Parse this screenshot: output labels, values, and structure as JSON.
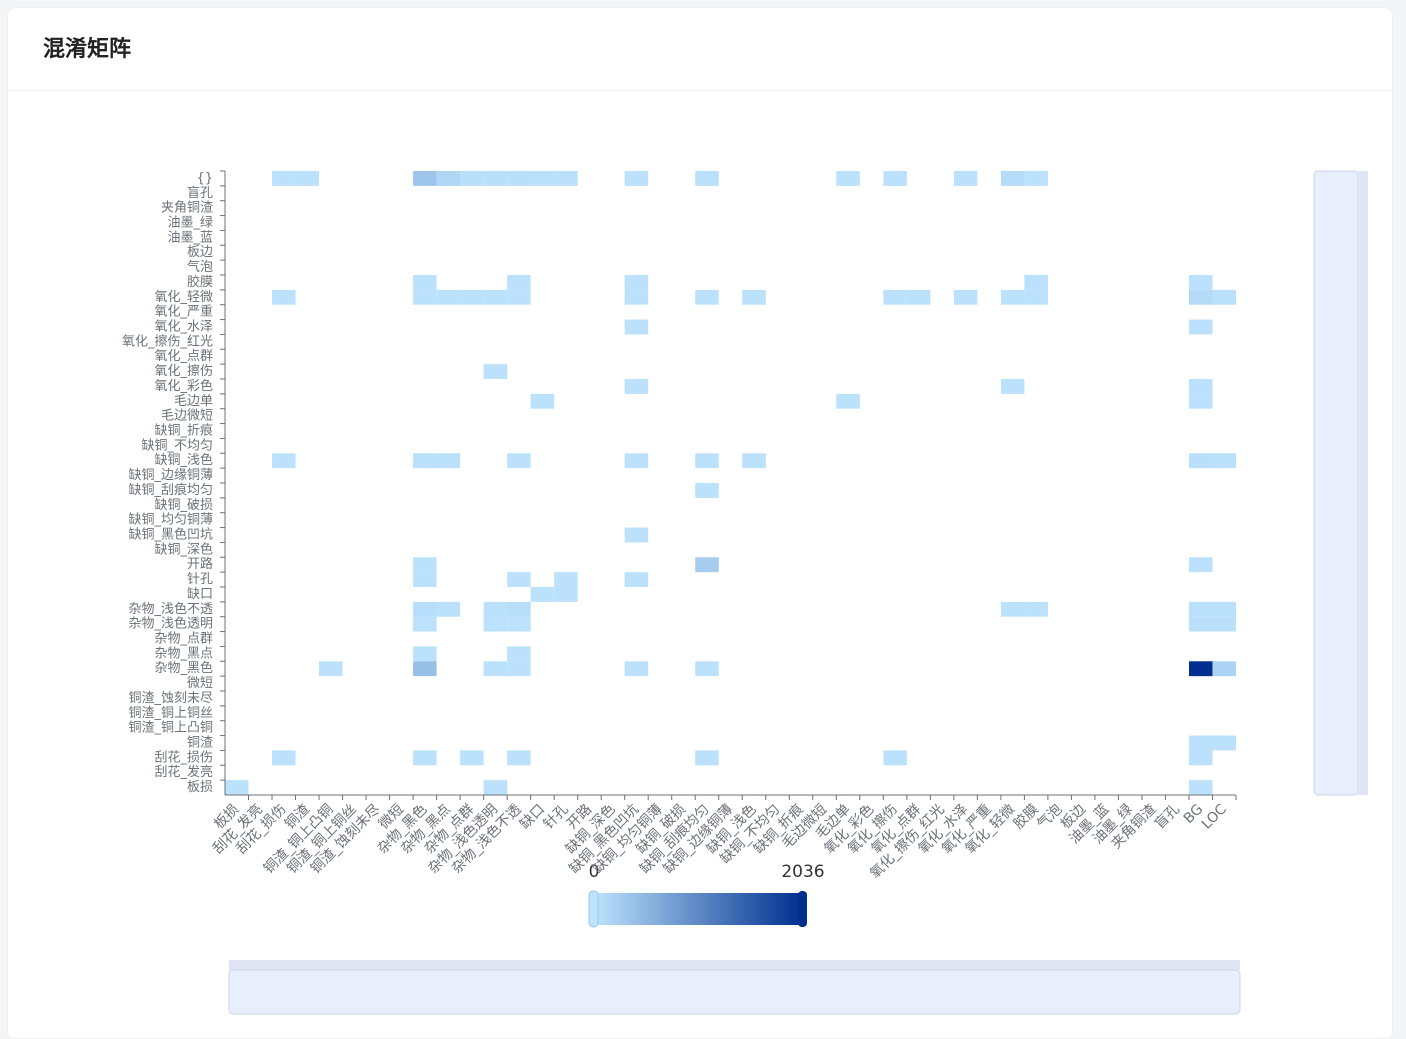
{
  "header": {
    "title": "混淆矩阵"
  },
  "chart_data": {
    "type": "heatmap",
    "x_categories": [
      "板损",
      "刮花_发亮",
      "刮花_损伤",
      "铜渣",
      "铜渣_铜上凸铜",
      "铜渣_铜上铜丝",
      "铜渣_蚀刻未尽",
      "微短",
      "杂物_黑色",
      "杂物_黑点",
      "杂物_点群",
      "杂物_浅色透明",
      "杂物_浅色不透",
      "缺口",
      "针孔",
      "开路",
      "缺铜_深色",
      "缺铜_黑色凹坑",
      "缺铜_均匀铜薄",
      "缺铜_破损",
      "缺铜_刮痕均匀",
      "缺铜_边缘铜薄",
      "缺铜_浅色",
      "缺铜_不均匀",
      "缺铜_折痕",
      "毛边微短",
      "毛边单",
      "氧化_彩色",
      "氧化_擦伤",
      "氧化_点群",
      "氧化_擦伤_红光",
      "氧化_水泽",
      "氧化_严重",
      "氧化_轻微",
      "胶膜",
      "气泡",
      "板边",
      "油墨_蓝",
      "油墨_绿",
      "夹角铜渣",
      "盲孔",
      "BG",
      "LOC"
    ],
    "y_categories": [
      "{}",
      "盲孔",
      "夹角铜渣",
      "油墨_绿",
      "油墨_蓝",
      "板边",
      "气泡",
      "胶膜",
      "氧化_轻微",
      "氧化_严重",
      "氧化_水泽",
      "氧化_擦伤_红光",
      "氧化_点群",
      "氧化_擦伤",
      "氧化_彩色",
      "毛边单",
      "毛边微短",
      "缺铜_折痕",
      "缺铜_不均匀",
      "缺铜_浅色",
      "缺铜_边缘铜薄",
      "缺铜_刮痕均匀",
      "缺铜_破损",
      "缺铜_均匀铜薄",
      "缺铜_黑色凹坑",
      "缺铜_深色",
      "开路",
      "针孔",
      "缺口",
      "杂物_浅色不透",
      "杂物_浅色透明",
      "杂物_点群",
      "杂物_黑点",
      "杂物_黑色",
      "微短",
      "铜渣_蚀刻未尽",
      "铜渣_铜上铜丝",
      "铜渣_铜上凸铜",
      "铜渣",
      "刮花_损伤",
      "刮花_发亮",
      "板损"
    ],
    "data": [
      [
        2,
        0,
        20
      ],
      [
        3,
        0,
        20
      ],
      [
        8,
        0,
        350
      ],
      [
        9,
        0,
        150
      ],
      [
        10,
        0,
        40
      ],
      [
        11,
        0,
        40
      ],
      [
        12,
        0,
        40
      ],
      [
        13,
        0,
        30
      ],
      [
        14,
        0,
        30
      ],
      [
        17,
        0,
        20
      ],
      [
        20,
        0,
        30
      ],
      [
        26,
        0,
        20
      ],
      [
        28,
        0,
        20
      ],
      [
        31,
        0,
        20
      ],
      [
        33,
        0,
        80
      ],
      [
        34,
        0,
        20
      ],
      [
        8,
        7,
        20
      ],
      [
        12,
        7,
        20
      ],
      [
        17,
        7,
        20
      ],
      [
        34,
        7,
        20
      ],
      [
        41,
        7,
        20
      ],
      [
        2,
        8,
        20
      ],
      [
        8,
        8,
        20
      ],
      [
        9,
        8,
        20
      ],
      [
        10,
        8,
        20
      ],
      [
        11,
        8,
        20
      ],
      [
        12,
        8,
        20
      ],
      [
        17,
        8,
        20
      ],
      [
        20,
        8,
        20
      ],
      [
        22,
        8,
        20
      ],
      [
        28,
        8,
        20
      ],
      [
        29,
        8,
        20
      ],
      [
        31,
        8,
        20
      ],
      [
        33,
        8,
        20
      ],
      [
        34,
        8,
        20
      ],
      [
        41,
        8,
        100
      ],
      [
        42,
        8,
        30
      ],
      [
        17,
        10,
        20
      ],
      [
        41,
        10,
        20
      ],
      [
        11,
        13,
        20
      ],
      [
        17,
        14,
        20
      ],
      [
        33,
        14,
        20
      ],
      [
        41,
        14,
        20
      ],
      [
        13,
        15,
        20
      ],
      [
        26,
        15,
        20
      ],
      [
        41,
        15,
        20
      ],
      [
        2,
        19,
        20
      ],
      [
        8,
        19,
        30
      ],
      [
        9,
        19,
        30
      ],
      [
        12,
        19,
        20
      ],
      [
        17,
        19,
        20
      ],
      [
        20,
        19,
        20
      ],
      [
        22,
        19,
        20
      ],
      [
        41,
        19,
        40
      ],
      [
        42,
        19,
        30
      ],
      [
        20,
        21,
        20
      ],
      [
        17,
        24,
        20
      ],
      [
        8,
        26,
        20
      ],
      [
        20,
        26,
        250
      ],
      [
        41,
        26,
        20
      ],
      [
        8,
        27,
        20
      ],
      [
        12,
        27,
        20
      ],
      [
        14,
        27,
        20
      ],
      [
        17,
        27,
        20
      ],
      [
        13,
        28,
        20
      ],
      [
        14,
        28,
        20
      ],
      [
        8,
        29,
        60
      ],
      [
        9,
        29,
        30
      ],
      [
        11,
        29,
        30
      ],
      [
        12,
        29,
        50
      ],
      [
        33,
        29,
        20
      ],
      [
        34,
        29,
        20
      ],
      [
        41,
        29,
        30
      ],
      [
        42,
        29,
        30
      ],
      [
        8,
        30,
        20
      ],
      [
        11,
        30,
        20
      ],
      [
        12,
        30,
        20
      ],
      [
        41,
        30,
        30
      ],
      [
        42,
        30,
        30
      ],
      [
        8,
        32,
        20
      ],
      [
        12,
        32,
        20
      ],
      [
        4,
        33,
        20
      ],
      [
        8,
        33,
        400
      ],
      [
        11,
        33,
        20
      ],
      [
        12,
        33,
        20
      ],
      [
        17,
        33,
        20
      ],
      [
        20,
        33,
        20
      ],
      [
        41,
        33,
        2036
      ],
      [
        42,
        33,
        180
      ],
      [
        41,
        38,
        20
      ],
      [
        42,
        38,
        20
      ],
      [
        2,
        39,
        20
      ],
      [
        8,
        39,
        20
      ],
      [
        10,
        39,
        20
      ],
      [
        12,
        39,
        20
      ],
      [
        20,
        39,
        20
      ],
      [
        28,
        39,
        20
      ],
      [
        41,
        39,
        20
      ],
      [
        0,
        41,
        20
      ],
      [
        11,
        41,
        20
      ],
      [
        41,
        41,
        20
      ]
    ],
    "visual_map": {
      "min": 0,
      "max": 2036,
      "colors": [
        "#bde3fd",
        "#002f8f"
      ]
    }
  }
}
